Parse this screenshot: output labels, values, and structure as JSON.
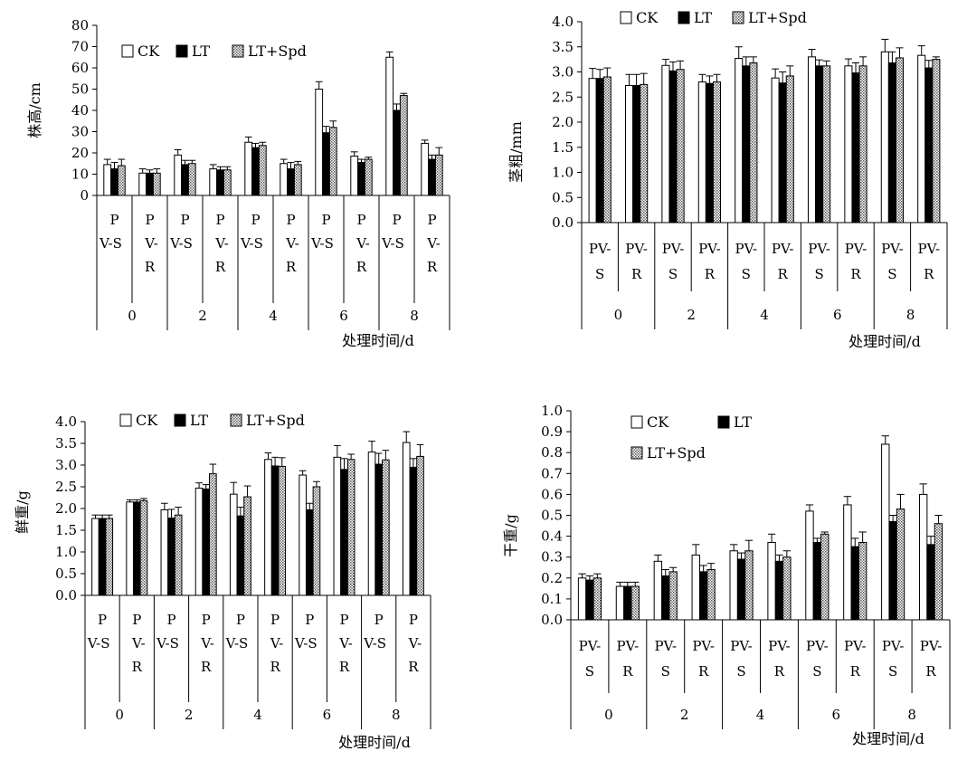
{
  "chart_data": [
    {
      "type": "bar",
      "panel": "a",
      "ylabel": "株高/cm",
      "xlabel": "处理时间/d",
      "ylim": [
        0,
        80
      ],
      "yticks": [
        "0",
        "10",
        "20",
        "30",
        "40",
        "50",
        "60",
        "70",
        "80"
      ],
      "tick_style": "split",
      "group_labels": [
        "0",
        "2",
        "4",
        "6",
        "8"
      ],
      "sub_labels": [
        "PV-S",
        "PV-R"
      ],
      "legend": [
        "CK",
        "LT",
        "LT+Spd"
      ],
      "legend_layout": "row",
      "series": [
        {
          "name": "CK",
          "values": [
            14.5,
            10.5,
            19,
            12.5,
            25,
            15,
            50,
            18.5,
            65,
            24.5
          ],
          "errors": [
            2.5,
            2,
            2.5,
            2,
            2.5,
            2,
            3.5,
            2,
            2.5,
            1.5
          ]
        },
        {
          "name": "LT",
          "values": [
            12.5,
            10.5,
            14.5,
            12,
            22.5,
            12.5,
            29.5,
            15.5,
            40,
            17
          ],
          "errors": [
            3,
            1.5,
            2,
            1.5,
            2,
            3,
            3,
            1.5,
            3,
            2
          ]
        },
        {
          "name": "LT+Spd",
          "values": [
            14,
            10.5,
            15,
            12,
            23.5,
            14.5,
            32,
            17,
            47,
            19
          ],
          "errors": [
            3,
            2,
            1.5,
            1.5,
            1.5,
            1.5,
            3,
            1,
            1,
            3.5
          ]
        }
      ]
    },
    {
      "type": "bar",
      "panel": "b",
      "ylabel": "茎粗/mm",
      "xlabel": "处理时间/d",
      "ylim": [
        0,
        4
      ],
      "yticks": [
        "0.0",
        "0.5",
        "1.0",
        "1.5",
        "2.0",
        "2.5",
        "3.0",
        "3.5",
        "4.0"
      ],
      "tick_style": "twoline",
      "group_labels": [
        "0",
        "2",
        "4",
        "6",
        "8"
      ],
      "sub_labels": [
        "PV-S",
        "PV-R"
      ],
      "legend": [
        "CK",
        "LT",
        "LT+Spd"
      ],
      "legend_layout": "row",
      "series": [
        {
          "name": "CK",
          "values": [
            2.87,
            2.73,
            3.13,
            2.8,
            3.27,
            2.88,
            3.3,
            3.12,
            3.4,
            3.33
          ],
          "errors": [
            0.2,
            0.22,
            0.12,
            0.15,
            0.23,
            0.18,
            0.15,
            0.14,
            0.25,
            0.19
          ]
        },
        {
          "name": "LT",
          "values": [
            2.87,
            2.73,
            3.02,
            2.77,
            3.12,
            2.78,
            3.12,
            2.98,
            3.18,
            3.08
          ],
          "errors": [
            0.18,
            0.22,
            0.18,
            0.15,
            0.18,
            0.22,
            0.12,
            0.2,
            0.22,
            0.15
          ]
        },
        {
          "name": "LT+Spd",
          "values": [
            2.9,
            2.75,
            3.05,
            2.8,
            3.18,
            2.92,
            3.12,
            3.12,
            3.28,
            3.25
          ],
          "errors": [
            0.18,
            0.22,
            0.17,
            0.15,
            0.12,
            0.2,
            0.1,
            0.18,
            0.2,
            0.05
          ]
        }
      ]
    },
    {
      "type": "bar",
      "panel": "c",
      "ylabel": "鲜重/g",
      "xlabel": "处理时间/d",
      "ylim": [
        0,
        4
      ],
      "yticks": [
        "0.0",
        "0.5",
        "1.0",
        "1.5",
        "2.0",
        "2.5",
        "3.0",
        "3.5",
        "4.0"
      ],
      "tick_style": "split",
      "group_labels": [
        "0",
        "2",
        "4",
        "6",
        "8"
      ],
      "sub_labels": [
        "PV-S",
        "PV-R"
      ],
      "legend": [
        "CK",
        "LT",
        "LT+Spd"
      ],
      "legend_layout": "row",
      "series": [
        {
          "name": "CK",
          "values": [
            1.77,
            2.15,
            1.97,
            2.47,
            2.33,
            3.13,
            2.77,
            3.18,
            3.3,
            3.52
          ],
          "errors": [
            0.08,
            0.05,
            0.15,
            0.12,
            0.27,
            0.15,
            0.1,
            0.27,
            0.25,
            0.25
          ]
        },
        {
          "name": "LT",
          "values": [
            1.77,
            2.15,
            1.78,
            2.45,
            1.83,
            2.98,
            1.97,
            2.9,
            3.02,
            2.95
          ],
          "errors": [
            0.08,
            0.05,
            0.2,
            0.1,
            0.2,
            0.2,
            0.15,
            0.25,
            0.25,
            0.2
          ]
        },
        {
          "name": "LT+Spd",
          "values": [
            1.77,
            2.18,
            1.85,
            2.8,
            2.27,
            2.97,
            2.5,
            3.13,
            3.12,
            3.2
          ],
          "errors": [
            0.08,
            0.05,
            0.18,
            0.22,
            0.25,
            0.2,
            0.12,
            0.12,
            0.22,
            0.27
          ]
        }
      ]
    },
    {
      "type": "bar",
      "panel": "d",
      "ylabel": "干重/g",
      "xlabel": "处理时间/d",
      "ylim": [
        0,
        1
      ],
      "yticks": [
        "0.0",
        "0.1",
        "0.2",
        "0.3",
        "0.4",
        "0.5",
        "0.6",
        "0.7",
        "0.8",
        "0.9",
        "1.0"
      ],
      "tick_style": "twoline",
      "group_labels": [
        "0",
        "2",
        "4",
        "6",
        "8"
      ],
      "sub_labels": [
        "PV-S",
        "PV-R"
      ],
      "legend": [
        "CK",
        "LT",
        "LT+Spd"
      ],
      "legend_layout": "stack",
      "series": [
        {
          "name": "CK",
          "values": [
            0.2,
            0.16,
            0.28,
            0.31,
            0.33,
            0.37,
            0.52,
            0.55,
            0.84,
            0.6
          ],
          "errors": [
            0.02,
            0.02,
            0.03,
            0.05,
            0.03,
            0.04,
            0.03,
            0.04,
            0.04,
            0.05
          ]
        },
        {
          "name": "LT",
          "values": [
            0.19,
            0.16,
            0.21,
            0.23,
            0.29,
            0.28,
            0.37,
            0.35,
            0.47,
            0.36
          ],
          "errors": [
            0.02,
            0.02,
            0.03,
            0.03,
            0.03,
            0.03,
            0.02,
            0.04,
            0.03,
            0.04
          ]
        },
        {
          "name": "LT+Spd",
          "values": [
            0.2,
            0.16,
            0.23,
            0.24,
            0.33,
            0.3,
            0.41,
            0.37,
            0.53,
            0.46
          ],
          "errors": [
            0.02,
            0.02,
            0.02,
            0.03,
            0.05,
            0.03,
            0.01,
            0.05,
            0.07,
            0.04
          ]
        }
      ]
    }
  ]
}
